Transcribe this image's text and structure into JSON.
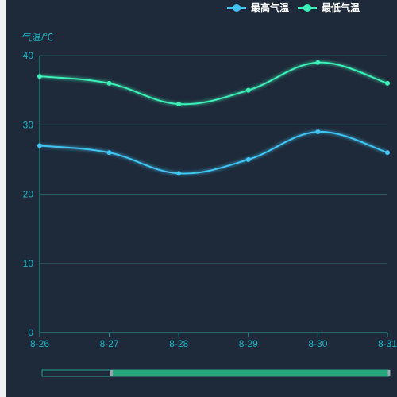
{
  "chart_data": {
    "type": "line",
    "x": [
      "8-26",
      "8-27",
      "8-28",
      "8-29",
      "8-30",
      "8-31"
    ],
    "series": [
      {
        "name": "最高气温",
        "values": [
          27,
          26,
          23,
          25,
          29,
          26
        ],
        "color": "#3fc4f4"
      },
      {
        "name": "最低气温",
        "values": [
          37,
          36,
          33,
          35,
          39,
          36
        ],
        "color": "#3cf0b8"
      }
    ],
    "ylabel": "气温/℃",
    "yticks": [
      "0",
      "10",
      "20",
      "30",
      "40"
    ],
    "ylim": [
      0,
      40
    ],
    "smooth": true,
    "grid": true,
    "legend_position": "top-right",
    "colors": {
      "background": "#1e2a39",
      "axis": "#2a9d8f",
      "grid": "#2b5a5c",
      "tick_text": "#19b4c6",
      "slider_fill": "#26a67a"
    },
    "data_zoom": {
      "start": 0.2,
      "end": 1.0
    }
  }
}
